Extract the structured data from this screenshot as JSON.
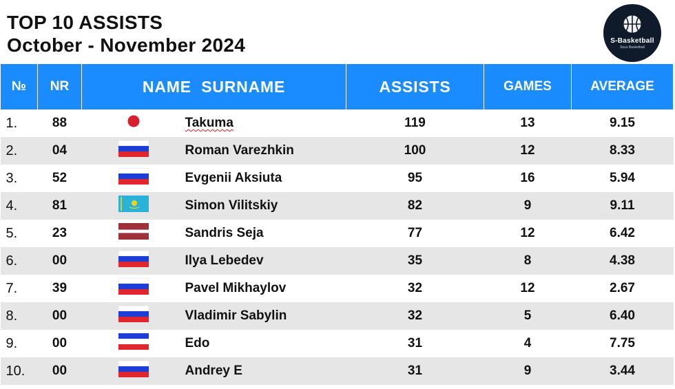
{
  "title": {
    "line1": "TOP 10 ASSISTS",
    "line2": "October - November 2024"
  },
  "logo": {
    "icon": "basketball-icon",
    "name": "S-Basketball",
    "sub": "Sous Basketball",
    "background": "#0f1a2a"
  },
  "colors": {
    "header": "#1a8cff",
    "row_alt": "#e6e6e6"
  },
  "headers": {
    "no": "№",
    "nr": "NR",
    "name": "NAME  SURNAME",
    "assists": "ASSISTS",
    "games": "GAMES",
    "average": "AVERAGE"
  },
  "rows": [
    {
      "rank": "1.",
      "nr": "88",
      "flag": "japan",
      "name": "Takuma",
      "assists": "119",
      "games": "13",
      "average": "9.15"
    },
    {
      "rank": "2.",
      "nr": "04",
      "flag": "russia",
      "name": "Roman Varezhkin",
      "assists": "100",
      "games": "12",
      "average": "8.33"
    },
    {
      "rank": "3.",
      "nr": "52",
      "flag": "russia",
      "name": "Evgenii Aksiuta",
      "assists": "95",
      "games": "16",
      "average": "5.94"
    },
    {
      "rank": "4.",
      "nr": "81",
      "flag": "kazakhstan",
      "name": "Simon Vilitskiy",
      "assists": "82",
      "games": "9",
      "average": "9.11"
    },
    {
      "rank": "5.",
      "nr": "23",
      "flag": "latvia",
      "name": "Sandris Seja",
      "assists": "77",
      "games": "12",
      "average": "6.42"
    },
    {
      "rank": "6.",
      "nr": "00",
      "flag": "russia",
      "name": "Ilya Lebedev",
      "assists": "35",
      "games": "8",
      "average": "4.38"
    },
    {
      "rank": "7.",
      "nr": "39",
      "flag": "russia",
      "name": "Pavel Mikhaylov",
      "assists": "32",
      "games": "12",
      "average": "2.67"
    },
    {
      "rank": "8.",
      "nr": "00",
      "flag": "russia",
      "name": "Vladimir Sabylin",
      "assists": "32",
      "games": "5",
      "average": "6.40"
    },
    {
      "rank": "9.",
      "nr": "00",
      "flag": "serbia",
      "name": "Edo",
      "assists": "31",
      "games": "4",
      "average": "7.75"
    },
    {
      "rank": "10.",
      "nr": "00",
      "flag": "russia",
      "name": "Andrey E",
      "assists": "31",
      "games": "9",
      "average": "3.44"
    }
  ]
}
